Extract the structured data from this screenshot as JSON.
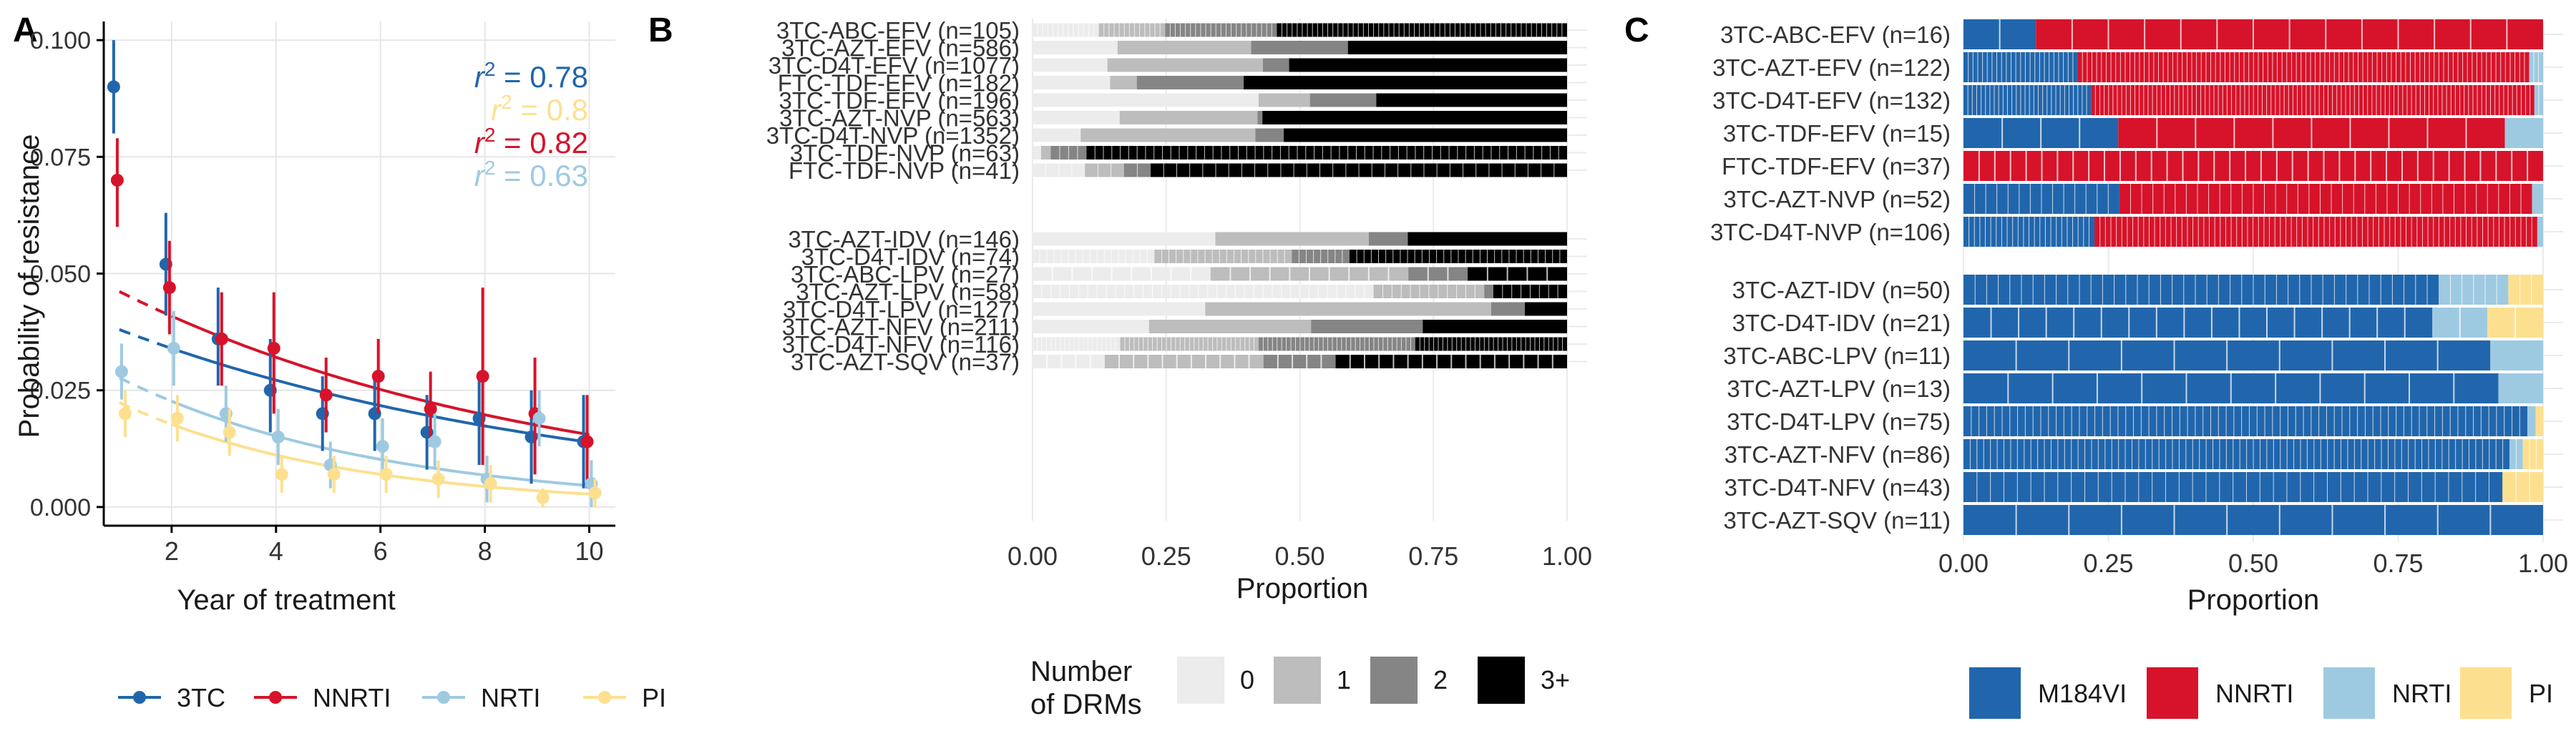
{
  "panel_labels": {
    "a": "A",
    "b": "B",
    "c": "C"
  },
  "colors": {
    "3TC": "#2166ac",
    "NNRTI": "#d6132a",
    "NRTI": "#9ecae1",
    "PI": "#fde08f",
    "M184VI": "#2166ac",
    "drm_0": "#ececec",
    "drm_1": "#bdbdbd",
    "drm_2": "#858585",
    "drm_3": "#000000"
  },
  "chart_data": [
    {
      "type": "scatter",
      "xlabel": "Year of treatment",
      "ylabel": "Probability of resistance",
      "xlim": [
        0.7,
        10.5
      ],
      "ylim": [
        -0.004,
        0.104
      ],
      "xticks": [
        2,
        4,
        6,
        8,
        10
      ],
      "yticks": [
        0.0,
        0.025,
        0.05,
        0.075,
        0.1
      ],
      "ytick_labels": [
        "0.000",
        "0.025",
        "0.050",
        "0.075",
        "0.100"
      ],
      "r2": [
        {
          "series": "3TC",
          "label": "r",
          "sup": "2",
          "value": " = 0.78"
        },
        {
          "series": "PI",
          "label": "r",
          "sup": "2",
          "value": " = 0.8"
        },
        {
          "series": "NNRTI",
          "label": "r",
          "sup": "2",
          "value": " = 0.82"
        },
        {
          "series": "NRTI",
          "label": "r",
          "sup": "2",
          "value": " = 0.63"
        }
      ],
      "legend": [
        "3TC",
        "NNRTI",
        "NRTI",
        "PI"
      ],
      "series": [
        {
          "name": "3TC",
          "x": [
            1,
            2,
            3,
            4,
            5,
            6,
            7,
            8,
            9,
            10
          ],
          "y": [
            0.09,
            0.052,
            0.036,
            0.025,
            0.02,
            0.02,
            0.016,
            0.019,
            0.015,
            0.014
          ],
          "lo": [
            0.08,
            0.041,
            0.026,
            0.016,
            0.012,
            0.012,
            0.008,
            0.009,
            0.005,
            0.004
          ],
          "hi": [
            0.1,
            0.063,
            0.047,
            0.036,
            0.028,
            0.028,
            0.024,
            0.029,
            0.025,
            0.024
          ],
          "fit": {
            "a": 0.0425,
            "b": 0.1119
          }
        },
        {
          "name": "NNRTI",
          "x": [
            1,
            2,
            3,
            4,
            5,
            6,
            7,
            8,
            9,
            10
          ],
          "y": [
            0.07,
            0.047,
            0.036,
            0.034,
            0.024,
            0.028,
            0.021,
            0.028,
            0.02,
            0.014
          ],
          "lo": [
            0.06,
            0.037,
            0.026,
            0.02,
            0.016,
            0.02,
            0.013,
            0.009,
            0.007,
            0.004
          ],
          "hi": [
            0.079,
            0.057,
            0.046,
            0.046,
            0.032,
            0.036,
            0.029,
            0.047,
            0.032,
            0.024
          ],
          "fit": {
            "a": 0.0521,
            "b": 0.1212
          }
        },
        {
          "name": "NRTI",
          "x": [
            1,
            2,
            3,
            4,
            5,
            6,
            7,
            8,
            9,
            10
          ],
          "y": [
            0.029,
            0.034,
            0.02,
            0.015,
            0.009,
            0.013,
            0.014,
            0.006,
            0.019,
            0.005
          ],
          "lo": [
            0.023,
            0.026,
            0.014,
            0.009,
            0.004,
            0.007,
            0.008,
            0.001,
            0.013,
            0.0
          ],
          "hi": [
            0.035,
            0.042,
            0.026,
            0.021,
            0.014,
            0.019,
            0.02,
            0.011,
            0.025,
            0.01
          ],
          "fit": {
            "a": 0.0338,
            "b": 0.1998
          }
        },
        {
          "name": "PI",
          "x": [
            1,
            2,
            3,
            4,
            5,
            6,
            7,
            8,
            9,
            10
          ],
          "y": [
            0.02,
            0.019,
            0.016,
            0.007,
            0.007,
            0.007,
            0.006,
            0.005,
            0.002,
            0.003
          ],
          "lo": [
            0.015,
            0.014,
            0.011,
            0.003,
            0.003,
            0.003,
            0.002,
            0.001,
            0.0,
            0.0
          ],
          "hi": [
            0.025,
            0.024,
            0.021,
            0.011,
            0.011,
            0.011,
            0.01,
            0.009,
            0.004,
            0.006
          ],
          "fit": {
            "a": 0.0282,
            "b": 0.2322
          }
        }
      ]
    },
    {
      "type": "bar",
      "stacked": true,
      "orientation": "horizontal",
      "xlabel": "Proportion",
      "xlim": [
        0,
        1
      ],
      "xticks": [
        0,
        0.25,
        0.5,
        0.75,
        1.0
      ],
      "xtick_labels": [
        "0.00",
        "0.25",
        "0.50",
        "0.75",
        "1.00"
      ],
      "legend_title": [
        "Number",
        "of DRMs"
      ],
      "legend": [
        "0",
        "1",
        "2",
        "3+"
      ],
      "groups": [
        [
          {
            "label": "3TC-ABC-EFV (n=105)",
            "n": 105,
            "values": [
              0.124,
              0.124,
              0.209,
              0.543
            ]
          },
          {
            "label": "3TC-AZT-EFV (n=586)",
            "n": 586,
            "values": [
              0.159,
              0.25,
              0.181,
              0.41
            ]
          },
          {
            "label": "3TC-D4T-EFV (n=1077)",
            "n": 1077,
            "values": [
              0.14,
              0.291,
              0.049,
              0.52
            ]
          },
          {
            "label": "FTC-TDF-EFV (n=182)",
            "n": 182,
            "values": [
              0.145,
              0.05,
              0.2,
              0.605
            ]
          },
          {
            "label": "3TC-TDF-EFV (n=196)",
            "n": 196,
            "values": [
              0.423,
              0.096,
              0.124,
              0.357
            ]
          },
          {
            "label": "3TC-AZT-NVP (n=563)",
            "n": 563,
            "values": [
              0.163,
              0.258,
              0.009,
              0.57
            ]
          },
          {
            "label": "3TC-D4T-NVP (n=1352)",
            "n": 1352,
            "values": [
              0.09,
              0.327,
              0.053,
              0.53
            ]
          },
          {
            "label": "3TC-TDF-NVP (n=63)",
            "n": 63,
            "values": [
              0.016,
              0.018,
              0.067,
              0.899
            ]
          },
          {
            "label": "FTC-TDF-NVP (n=41)",
            "n": 41,
            "values": [
              0.098,
              0.073,
              0.05,
              0.779
            ]
          }
        ],
        [
          {
            "label": "3TC-AZT-IDV (n=146)",
            "n": 146,
            "values": [
              0.342,
              0.287,
              0.073,
              0.298
            ]
          },
          {
            "label": "3TC-D4T-IDV (n=74)",
            "n": 74,
            "values": [
              0.228,
              0.257,
              0.108,
              0.407
            ]
          },
          {
            "label": "3TC-ABC-LPV (n=27)",
            "n": 27,
            "values": [
              0.333,
              0.37,
              0.111,
              0.186
            ]
          },
          {
            "label": "3TC-AZT-LPV (n=58)",
            "n": 58,
            "values": [
              0.638,
              0.207,
              0.017,
              0.138
            ]
          },
          {
            "label": "3TC-D4T-LPV (n=127)",
            "n": 127,
            "values": [
              0.323,
              0.535,
              0.063,
              0.079
            ]
          },
          {
            "label": "3TC-AZT-NFV (n=211)",
            "n": 211,
            "values": [
              0.218,
              0.303,
              0.209,
              0.27
            ]
          },
          {
            "label": "3TC-D4T-NFV (n=116)",
            "n": 116,
            "values": [
              0.164,
              0.259,
              0.293,
              0.284
            ]
          },
          {
            "label": "3TC-AZT-SQV (n=37)",
            "n": 37,
            "values": [
              0.135,
              0.297,
              0.135,
              0.433
            ]
          }
        ]
      ]
    },
    {
      "type": "bar",
      "stacked": true,
      "orientation": "horizontal",
      "xlabel": "Proportion",
      "xlim": [
        0,
        1
      ],
      "xticks": [
        0,
        0.25,
        0.5,
        0.75,
        1.0
      ],
      "xtick_labels": [
        "0.00",
        "0.25",
        "0.50",
        "0.75",
        "1.00"
      ],
      "legend": [
        "M184VI",
        "NNRTI",
        "NRTI",
        "PI"
      ],
      "groups": [
        [
          {
            "label": "3TC-ABC-EFV (n=16)",
            "n": 16,
            "values": [
              0.125,
              0.875,
              0,
              0
            ]
          },
          {
            "label": "3TC-AZT-EFV (n=122)",
            "n": 122,
            "values": [
              0.197,
              0.779,
              0.024,
              0
            ]
          },
          {
            "label": "3TC-D4T-EFV (n=132)",
            "n": 132,
            "values": [
              0.22,
              0.765,
              0.015,
              0
            ]
          },
          {
            "label": "3TC-TDF-EFV (n=15)",
            "n": 15,
            "values": [
              0.267,
              0.667,
              0.066,
              0
            ]
          },
          {
            "label": "FTC-TDF-EFV (n=37)",
            "n": 37,
            "values": [
              0,
              1.0,
              0,
              0
            ]
          },
          {
            "label": "3TC-AZT-NVP (n=52)",
            "n": 52,
            "values": [
              0.269,
              0.712,
              0.019,
              0
            ]
          },
          {
            "label": "3TC-D4T-NVP (n=106)",
            "n": 106,
            "values": [
              0.226,
              0.764,
              0.01,
              0
            ]
          }
        ],
        [
          {
            "label": "3TC-AZT-IDV (n=50)",
            "n": 50,
            "values": [
              0.82,
              0,
              0.12,
              0.06
            ]
          },
          {
            "label": "3TC-D4T-IDV (n=21)",
            "n": 21,
            "values": [
              0.809,
              0,
              0.095,
              0.096
            ]
          },
          {
            "label": "3TC-ABC-LPV (n=11)",
            "n": 11,
            "values": [
              0.909,
              0,
              0.091,
              0
            ]
          },
          {
            "label": "3TC-AZT-LPV (n=13)",
            "n": 13,
            "values": [
              0.923,
              0,
              0.077,
              0
            ]
          },
          {
            "label": "3TC-D4T-LPV (n=75)",
            "n": 75,
            "values": [
              0.973,
              0,
              0.014,
              0.013
            ]
          },
          {
            "label": "3TC-AZT-NFV (n=86)",
            "n": 86,
            "values": [
              0.942,
              0,
              0.023,
              0.035
            ]
          },
          {
            "label": "3TC-D4T-NFV (n=43)",
            "n": 43,
            "values": [
              0.93,
              0,
              0,
              0.07
            ]
          },
          {
            "label": "3TC-AZT-SQV (n=11)",
            "n": 11,
            "values": [
              1.0,
              0,
              0,
              0
            ]
          }
        ]
      ]
    }
  ]
}
